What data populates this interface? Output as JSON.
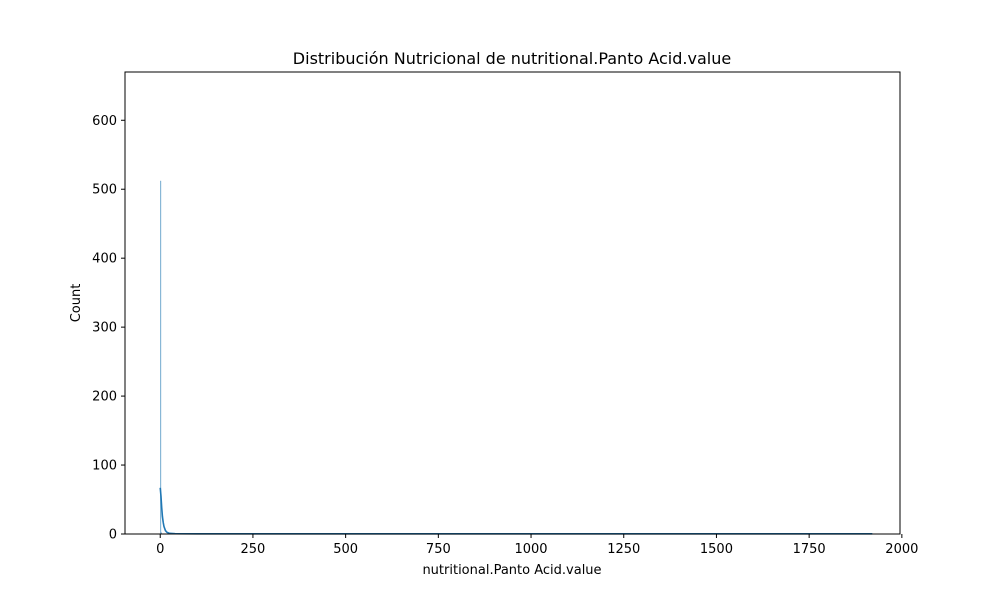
{
  "chart_data": {
    "type": "histogram",
    "title": "Distribución Nutricional de nutritional.Panto Acid.value",
    "xlabel": "nutritional.Panto Acid.value",
    "ylabel": "Count",
    "xlim": [
      -95,
      1995
    ],
    "ylim": [
      0,
      670
    ],
    "x_ticks": [
      0,
      250,
      500,
      750,
      1000,
      1250,
      1500,
      1750,
      2000
    ],
    "x_tick_labels": [
      "0",
      "250",
      "500",
      "750",
      "1000",
      "1250",
      "1500",
      "1750",
      "2000"
    ],
    "y_ticks": [
      0,
      100,
      200,
      300,
      400,
      500,
      600
    ],
    "y_tick_labels": [
      "0",
      "100",
      "200",
      "300",
      "400",
      "500",
      "600"
    ],
    "grid": false,
    "bar_color": "#1f77b4",
    "bar_opacity": 0.5,
    "line_color": "#1f77b4",
    "bins": [
      {
        "x0": 0,
        "x1": 2,
        "count": 512
      },
      {
        "x0": 2,
        "x1": 4,
        "count": 2
      },
      {
        "x0": 1918,
        "x1": 1920,
        "count": 1
      }
    ],
    "kde": {
      "x": [
        0,
        2,
        4,
        6,
        8,
        10,
        14,
        18,
        25,
        40,
        100,
        300,
        600,
        1000,
        1400,
        1800,
        1920
      ],
      "y": [
        67,
        55,
        38,
        25,
        17,
        11,
        5,
        2.5,
        1,
        0.4,
        0.2,
        0.2,
        0.2,
        0.2,
        0.2,
        0.2,
        0.2
      ]
    }
  }
}
